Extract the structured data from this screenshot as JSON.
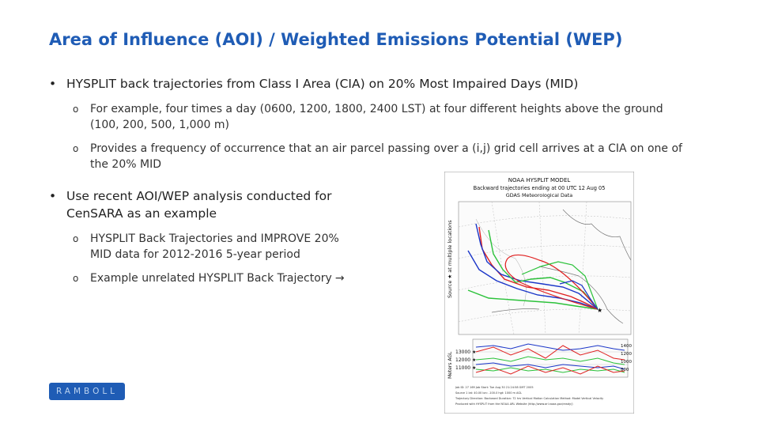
{
  "title": "Area of Influence (AOI) / Weighted Emissions Potential (WEP)",
  "bullets": [
    {
      "text": "HYSPLIT back trajectories from Class I Area (CIA) on 20% Most Impaired Days (MID)",
      "sub": [
        {
          "line1": "For example, four times a day (0600, 1200, 1800, 2400 LST) at four different heights above the ground",
          "line2": "(100, 200, 500, 1,000 m)"
        },
        {
          "line1": "Provides a frequency of occurrence that an air parcel passing over a (i,j) grid cell arrives at a CIA on one of",
          "line2": "the 20% MID"
        }
      ]
    },
    {
      "line1": "Use recent AOI/WEP analysis conducted for",
      "line2": "CenSARA as an example",
      "sub": [
        {
          "line1": "HYSPLIT Back Trajectories and IMPROVE 20%",
          "line2": "MID data for 2012-2016 5-year period"
        },
        {
          "line1": "Example unrelated HYSPLIT Back Trajectory",
          "arrow": "→"
        }
      ]
    }
  ],
  "logo_text": "RAMBOLL",
  "figure": {
    "header_line1": "NOAA HYSPLIT MODEL",
    "header_line2": "Backward trajectories ending at 00 UTC 12 Aug 05",
    "header_line3": "GDAS Meteorological Data",
    "side_label": "Source ★ at multiple locations",
    "height_label": "Meters AGL",
    "levels": [
      "13000 ★",
      "12000 ★",
      "11000 ★"
    ],
    "right_levels": [
      "1400",
      "1200",
      "1000",
      "800"
    ],
    "footer": [
      "Job ID: 27 169   Job Start: Tue Aug 30 21:24:58 GMT 2005",
      "Source 1 lat: 40.00  lon: -100.0  hgt: 1000 m AGL",
      "Trajectory Direction: Backward   Duration: 72 hrs   Vertical Motion Calculation Method: Model Vertical Velocity",
      "Produced with HYSPLIT from the NOAA ARL Website (http://www.arl.noaa.gov/ready/)"
    ],
    "colors": {
      "red": "#e02020",
      "blue": "#1a35c8",
      "green": "#2bc23a"
    }
  }
}
